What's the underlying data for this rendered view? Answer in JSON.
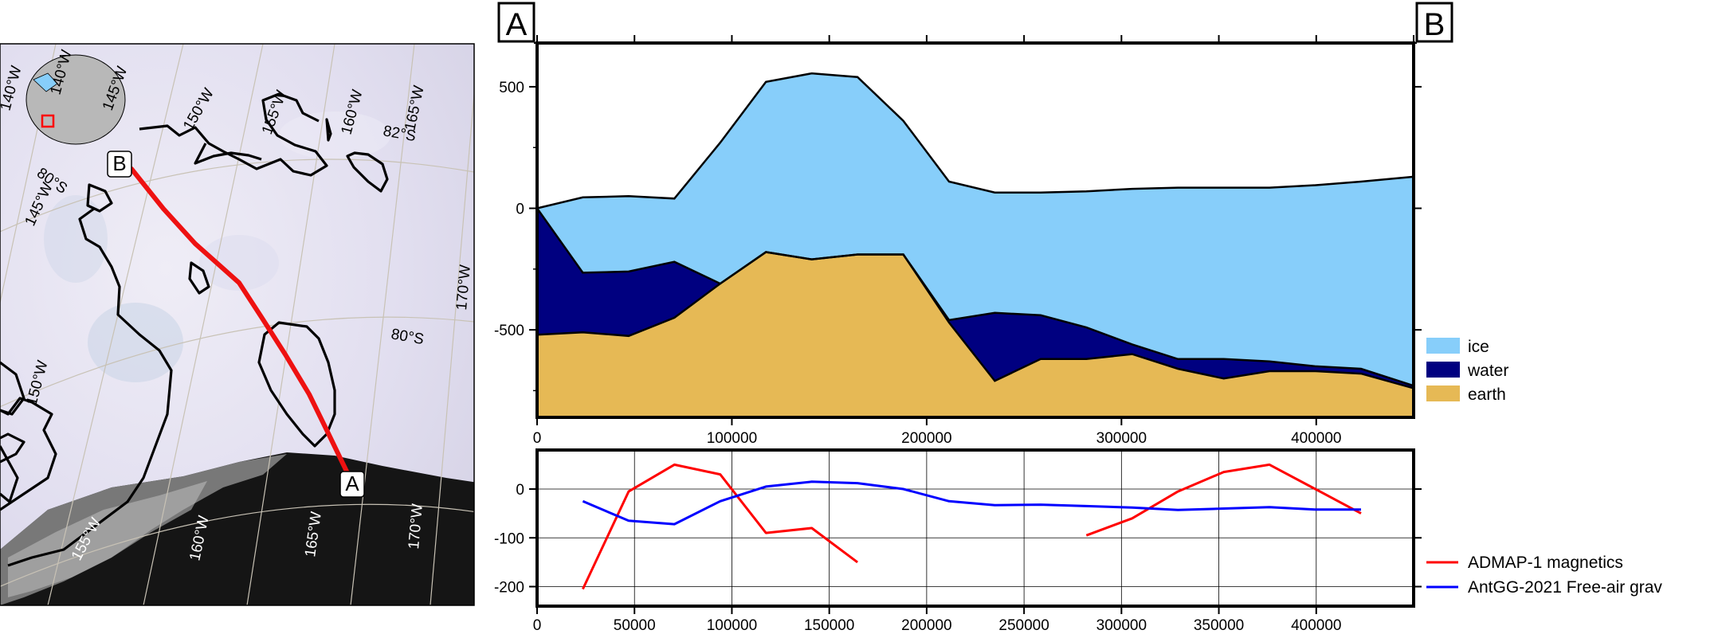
{
  "map": {
    "latitude_labels": [
      "80°S",
      "82°S",
      "80°S"
    ],
    "longitude_labels": [
      "140°W",
      "145°W",
      "150°W",
      "155°W",
      "160°W",
      "165°W",
      "170°W",
      "150°W",
      "155°W",
      "160°W",
      "165°W",
      "170°W",
      "145°W",
      "140°W"
    ],
    "profile_end_labels": [
      "B",
      "A"
    ],
    "colors": {
      "profile_line": "#ee1111",
      "coastline": "#000000",
      "ice": "#e8e6f2",
      "ocean": "#1a1a1a"
    }
  },
  "cross_section_labels": {
    "start": "A",
    "end": "B"
  },
  "chart_data": [
    {
      "type": "area",
      "x_min": 0,
      "x_max": 450000,
      "xticks": [
        0,
        100000,
        200000,
        300000,
        400000
      ],
      "xtick_labels": [
        "0",
        "100000",
        "200000",
        "300000",
        "400000"
      ],
      "ylim": [
        -860,
        680
      ],
      "yticks": [
        500,
        0,
        -500
      ],
      "ytick_labels": [
        "500",
        "0",
        "-500"
      ],
      "grid": false,
      "legend_position": "right-bottom",
      "x": [
        0,
        23500,
        47000,
        70500,
        94000,
        117500,
        141000,
        164500,
        188000,
        211500,
        235000,
        258500,
        282000,
        305500,
        329000,
        352500,
        376000,
        399500,
        423000,
        450000
      ],
      "series": [
        {
          "name": "ice",
          "color": "#87cefa",
          "values": [
            0,
            45,
            50,
            40,
            270,
            520,
            555,
            540,
            360,
            110,
            65,
            65,
            70,
            80,
            85,
            85,
            85,
            95,
            110,
            130
          ]
        },
        {
          "name": "water",
          "color": "#000080",
          "values": [
            0,
            -265,
            -260,
            -220,
            -310,
            -180,
            -210,
            -190,
            -190,
            -460,
            -430,
            -440,
            -490,
            -560,
            -620,
            -620,
            -630,
            -650,
            -660,
            -730
          ]
        },
        {
          "name": "earth",
          "color": "#e6b955",
          "values": [
            -520,
            -510,
            -525,
            -450,
            -310,
            -180,
            -210,
            -190,
            -190,
            -470,
            -710,
            -620,
            -620,
            -600,
            -660,
            -700,
            -670,
            -670,
            -680,
            -740
          ]
        }
      ]
    },
    {
      "type": "line",
      "x_min": 0,
      "x_max": 450000,
      "xticks": [
        0,
        50000,
        100000,
        150000,
        200000,
        250000,
        300000,
        350000,
        400000
      ],
      "xtick_labels": [
        "0",
        "50000",
        "100000",
        "150000",
        "200000",
        "250000",
        "300000",
        "350000",
        "400000"
      ],
      "ylim": [
        -240,
        80
      ],
      "yticks": [
        0,
        -100,
        -200
      ],
      "ytick_labels": [
        "0",
        "-100",
        "-200"
      ],
      "grid": true,
      "legend_position": "right-bottom",
      "series": [
        {
          "name": "ADMAP-1 magnetics",
          "color": "#ff0000",
          "segments": [
            {
              "x": [
                23500,
                47000,
                70500,
                94000,
                117500,
                141000,
                164500
              ],
              "y": [
                -205,
                -5,
                50,
                30,
                -90,
                -80,
                -150
              ]
            },
            {
              "x": [
                282000,
                305500,
                329000,
                352500,
                376000,
                399500,
                423000
              ],
              "y": [
                -95,
                -60,
                -5,
                35,
                50,
                0,
                -50
              ]
            }
          ]
        },
        {
          "name": "AntGG-2021 Free-air grav",
          "color": "#0000ff",
          "segments": [
            {
              "x": [
                23500,
                47000,
                70500,
                94000,
                117500,
                141000,
                164500,
                188000,
                211500,
                235000,
                258500,
                282000,
                305500,
                329000,
                352500,
                376000,
                399500,
                423000
              ],
              "y": [
                -25,
                -65,
                -72,
                -25,
                5,
                15,
                12,
                0,
                -25,
                -33,
                -32,
                -35,
                -38,
                -43,
                -40,
                -37,
                -42,
                -42
              ]
            }
          ]
        }
      ]
    }
  ]
}
